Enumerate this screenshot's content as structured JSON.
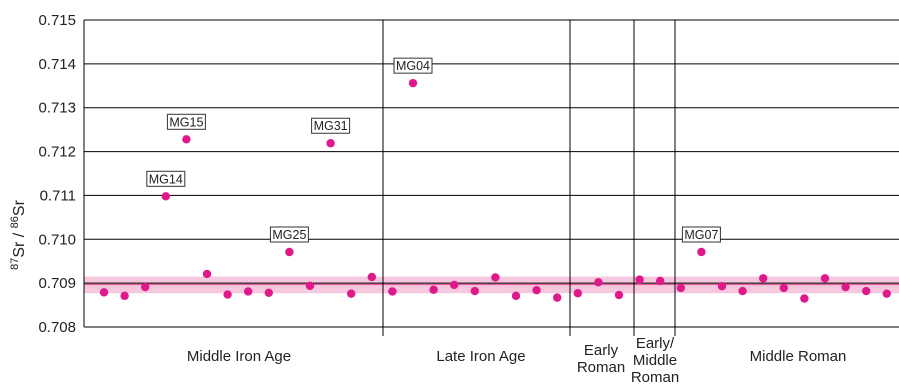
{
  "chart_data": {
    "type": "scatter",
    "title": "",
    "xlabel": "",
    "ylabel": {
      "sup1": "87",
      "base1": "Sr",
      "sep": " / ",
      "sup2": "86",
      "base2": "Sr"
    },
    "ylim": [
      0.708,
      0.715
    ],
    "yticks": [
      "0.708",
      "0.709",
      "0.710",
      "0.711",
      "0.712",
      "0.713",
      "0.714",
      "0.715"
    ],
    "grid": "horizontal",
    "colors": {
      "points": "#e0198a",
      "band_fill": "#f6c8dd",
      "band_line": "#e8609e",
      "grid": "#000000"
    },
    "baseline": {
      "center": 0.70897,
      "low": 0.70877,
      "high": 0.70915
    },
    "periods": [
      {
        "lines": [
          "Middle Iron Age"
        ]
      },
      {
        "lines": [
          "Late Iron Age"
        ]
      },
      {
        "lines": [
          "Early",
          "Roman"
        ]
      },
      {
        "lines": [
          "Early/",
          "Middle",
          "Roman"
        ]
      },
      {
        "lines": [
          "Middle Roman"
        ]
      }
    ],
    "points": [
      {
        "period": 0,
        "y": 0.70879,
        "label": ""
      },
      {
        "period": 0,
        "y": 0.70871,
        "label": ""
      },
      {
        "period": 0,
        "y": 0.70891,
        "label": ""
      },
      {
        "period": 0,
        "y": 0.71098,
        "label": "MG14"
      },
      {
        "period": 0,
        "y": 0.71228,
        "label": "MG15"
      },
      {
        "period": 0,
        "y": 0.70921,
        "label": ""
      },
      {
        "period": 0,
        "y": 0.70874,
        "label": ""
      },
      {
        "period": 0,
        "y": 0.70881,
        "label": ""
      },
      {
        "period": 0,
        "y": 0.70878,
        "label": ""
      },
      {
        "period": 0,
        "y": 0.70971,
        "label": "MG25"
      },
      {
        "period": 0,
        "y": 0.70894,
        "label": ""
      },
      {
        "period": 0,
        "y": 0.71219,
        "label": "MG31"
      },
      {
        "period": 0,
        "y": 0.70876,
        "label": ""
      },
      {
        "period": 0,
        "y": 0.70914,
        "label": ""
      },
      {
        "period": 1,
        "y": 0.70881,
        "label": ""
      },
      {
        "period": 1,
        "y": 0.71356,
        "label": "MG04"
      },
      {
        "period": 1,
        "y": 0.70885,
        "label": ""
      },
      {
        "period": 1,
        "y": 0.70896,
        "label": ""
      },
      {
        "period": 1,
        "y": 0.70882,
        "label": ""
      },
      {
        "period": 1,
        "y": 0.70913,
        "label": ""
      },
      {
        "period": 1,
        "y": 0.70871,
        "label": ""
      },
      {
        "period": 1,
        "y": 0.70884,
        "label": ""
      },
      {
        "period": 1,
        "y": 0.70867,
        "label": ""
      },
      {
        "period": 2,
        "y": 0.70877,
        "label": ""
      },
      {
        "period": 2,
        "y": 0.70902,
        "label": ""
      },
      {
        "period": 2,
        "y": 0.70873,
        "label": ""
      },
      {
        "period": 3,
        "y": 0.70908,
        "label": ""
      },
      {
        "period": 3,
        "y": 0.70905,
        "label": ""
      },
      {
        "period": 4,
        "y": 0.70889,
        "label": ""
      },
      {
        "period": 4,
        "y": 0.70971,
        "label": "MG07"
      },
      {
        "period": 4,
        "y": 0.70893,
        "label": ""
      },
      {
        "period": 4,
        "y": 0.70882,
        "label": ""
      },
      {
        "period": 4,
        "y": 0.70911,
        "label": ""
      },
      {
        "period": 4,
        "y": 0.70889,
        "label": ""
      },
      {
        "period": 4,
        "y": 0.70865,
        "label": ""
      },
      {
        "period": 4,
        "y": 0.70911,
        "label": ""
      },
      {
        "period": 4,
        "y": 0.70891,
        "label": ""
      },
      {
        "period": 4,
        "y": 0.70882,
        "label": ""
      },
      {
        "period": 4,
        "y": 0.70876,
        "label": ""
      }
    ]
  }
}
